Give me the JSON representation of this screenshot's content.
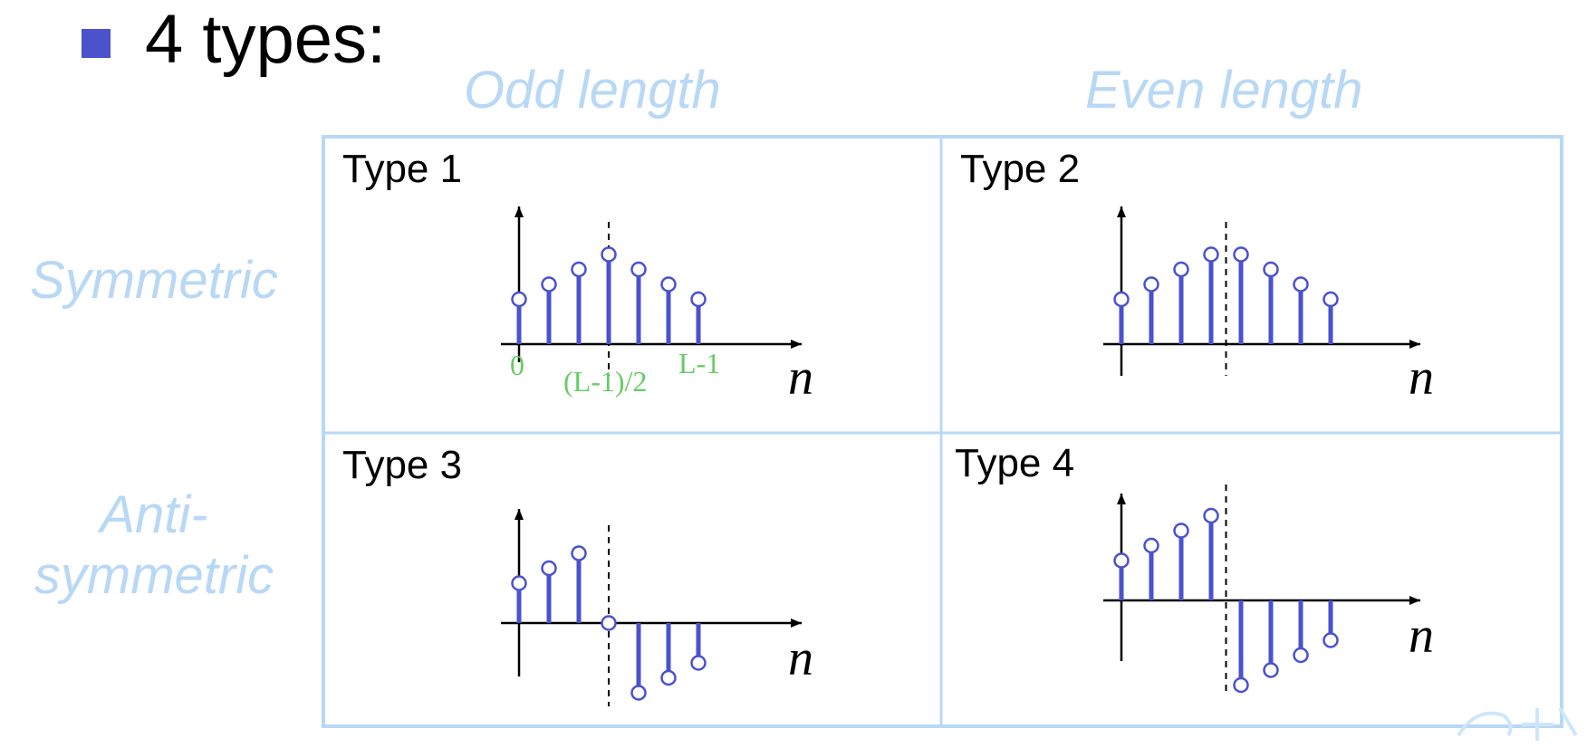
{
  "title": "4 types:",
  "columns": [
    "Odd length",
    "Even length"
  ],
  "rows": [
    "Symmetric",
    "Anti-\nsymmetric"
  ],
  "panels": [
    {
      "label": "Type 1",
      "samples": [
        0.45,
        0.6,
        0.75,
        0.9,
        0.75,
        0.6,
        0.45
      ],
      "axis_label": "n",
      "tick_labels": {
        "start": "0",
        "middle": "(L-1)/2",
        "end": "L-1"
      }
    },
    {
      "label": "Type 2",
      "samples": [
        0.45,
        0.6,
        0.75,
        0.9,
        0.9,
        0.75,
        0.6,
        0.45
      ],
      "axis_label": "n"
    },
    {
      "label": "Type 3",
      "samples": [
        0.4,
        0.55,
        0.7,
        0,
        -0.7,
        -0.55,
        -0.4
      ],
      "axis_label": "n"
    },
    {
      "label": "Type 4",
      "samples": [
        0.4,
        0.55,
        0.7,
        0.85,
        -0.85,
        -0.7,
        -0.55,
        -0.4
      ],
      "axis_label": "n"
    }
  ],
  "colors": {
    "stem": "#4a52cc",
    "header": "#b8d8f5",
    "grid": "#b8d8f5",
    "ticks": "#66cc66",
    "bullet": "#4a52cc"
  }
}
